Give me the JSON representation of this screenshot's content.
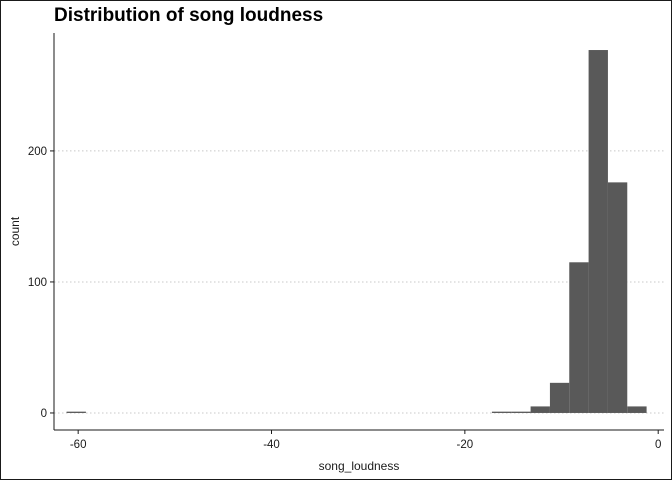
{
  "chart_data": {
    "type": "bar",
    "title": "Distribution of song loudness",
    "xlabel": "song_loudness",
    "ylabel": "count",
    "xlim": [
      -62.5,
      0.6
    ],
    "ylim": [
      -13,
      290
    ],
    "x_ticks": [
      -60,
      -40,
      -20,
      0
    ],
    "y_ticks": [
      0,
      100,
      200
    ],
    "grid": "horizontal-dotted",
    "bin_width": 2,
    "bar_color": "#595959",
    "bins": [
      {
        "x": -60.2,
        "count": 1
      },
      {
        "x": -16.2,
        "count": 1
      },
      {
        "x": -14.2,
        "count": 1
      },
      {
        "x": -12.2,
        "count": 5
      },
      {
        "x": -10.2,
        "count": 23
      },
      {
        "x": -8.2,
        "count": 115
      },
      {
        "x": -6.2,
        "count": 277
      },
      {
        "x": -4.2,
        "count": 176
      },
      {
        "x": -2.2,
        "count": 5
      }
    ]
  }
}
